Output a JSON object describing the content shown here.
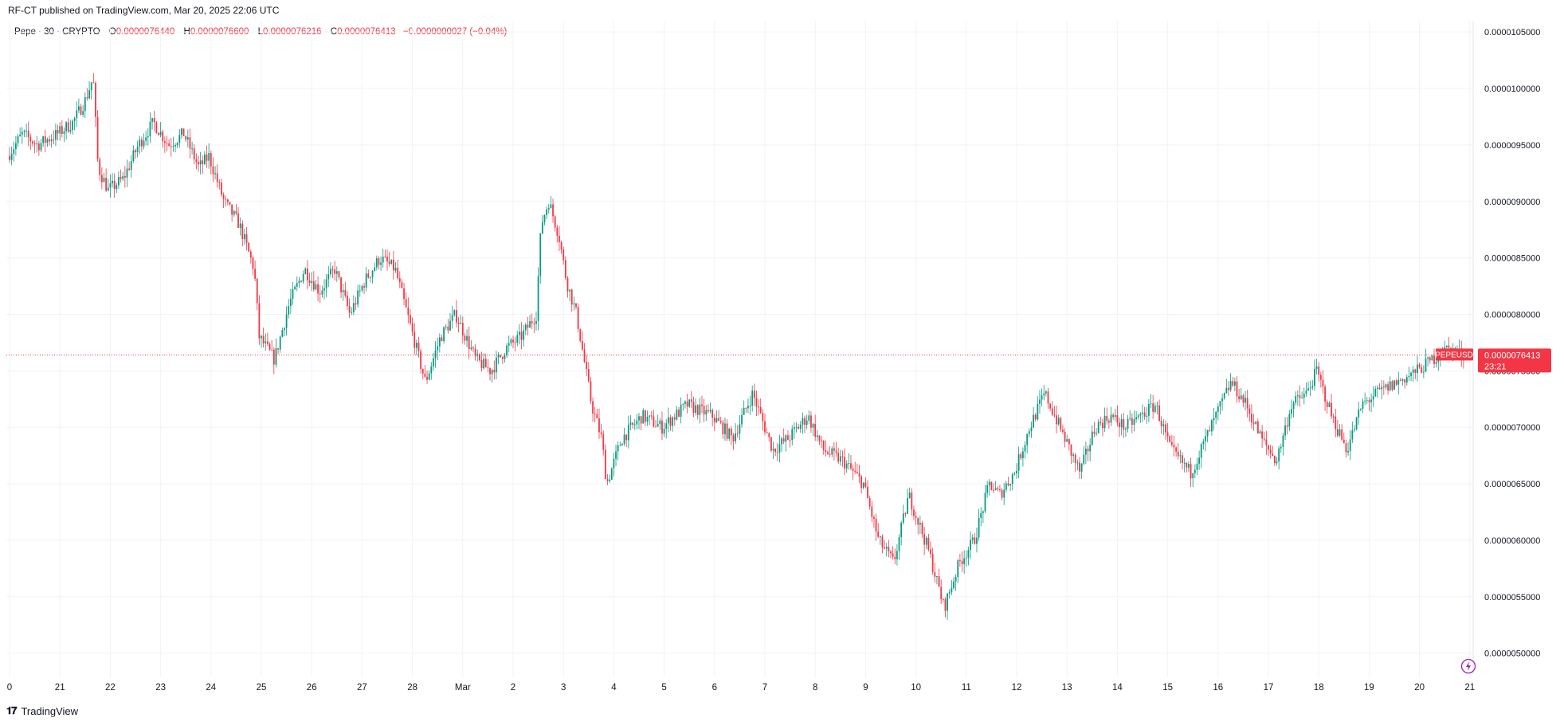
{
  "header": {
    "publisher_line": "RF-CT published on TradingView.com, Mar 20, 2025 22:06 UTC"
  },
  "legend": {
    "symbol": "Pepe · 30 · CRYPTO",
    "o_label": "O",
    "o_value": "0.0000076440",
    "h_label": "H",
    "h_value": "0.0000076600",
    "l_label": "L",
    "l_value": "0.0000076216",
    "c_label": "C",
    "c_value": "0.0000076413",
    "change": "−0.0000000027 (−0.04%)"
  },
  "price_tag": {
    "ticker": "PEPEUSD",
    "price": "0.0000076413",
    "countdown": "23:21"
  },
  "footer": {
    "brand": "TradingView"
  },
  "colors": {
    "up": "#089981",
    "down": "#f23645",
    "grid": "#f0f3fa",
    "axis_text": "#131722",
    "alert_icon": "#9c27b0"
  },
  "chart_data": {
    "type": "candlestick",
    "ylim": [
      4.8e-06,
      1.06e-05
    ],
    "y_ticks": [
      "0.0000050000",
      "0.0000055000",
      "0.0000060000",
      "0.0000065000",
      "0.0000070000",
      "0.0000075000",
      "0.0000080000",
      "0.0000085000",
      "0.0000090000",
      "0.0000095000",
      "0.0000100000",
      "0.0000105000"
    ],
    "y_tick_values": [
      5e-06,
      5.5e-06,
      6e-06,
      6.5e-06,
      7e-06,
      7.5e-06,
      8e-06,
      8.5e-06,
      9e-06,
      9.5e-06,
      1e-05,
      1.05e-05
    ],
    "x_ticks": [
      "0",
      "21",
      "22",
      "23",
      "24",
      "25",
      "26",
      "27",
      "28",
      "Mar",
      "2",
      "3",
      "4",
      "5",
      "6",
      "7",
      "8",
      "9",
      "10",
      "11",
      "12",
      "13",
      "14",
      "15",
      "16",
      "17",
      "18",
      "19",
      "20",
      "21"
    ],
    "x_tick_days": [
      0,
      1,
      2,
      3,
      4,
      5,
      6,
      7,
      8,
      9,
      10,
      11,
      12,
      13,
      14,
      15,
      16,
      17,
      18,
      19,
      20,
      21,
      22,
      23,
      24,
      25,
      26,
      27,
      28,
      29
    ],
    "last_price": 7.6413e-06,
    "price_path_days": [
      0.0,
      0.3,
      0.6,
      1.0,
      1.3,
      1.55,
      1.7,
      1.8,
      2.0,
      2.3,
      2.6,
      2.9,
      3.2,
      3.5,
      3.8,
      4.0,
      4.3,
      4.6,
      4.9,
      5.0,
      5.3,
      5.6,
      5.9,
      6.2,
      6.5,
      6.8,
      7.1,
      7.4,
      7.7,
      8.0,
      8.3,
      8.6,
      8.9,
      9.3,
      9.6,
      9.9,
      10.2,
      10.5,
      10.6,
      10.75,
      10.95,
      11.1,
      11.3,
      11.6,
      11.8,
      11.9,
      12.2,
      12.6,
      13.0,
      13.5,
      14.0,
      14.4,
      14.8,
      15.2,
      15.5,
      15.9,
      16.2,
      16.6,
      17.0,
      17.3,
      17.6,
      17.9,
      18.3,
      18.6,
      18.9,
      19.2,
      19.5,
      19.7,
      20.0,
      20.3,
      20.6,
      21.0,
      21.3,
      21.6,
      21.9,
      22.2,
      22.5,
      22.8,
      23.1,
      23.5,
      23.9,
      24.3,
      24.6,
      24.9,
      25.2,
      25.5,
      25.8,
      26.0,
      26.3,
      26.6,
      26.9,
      27.2,
      27.6,
      28.0,
      28.3,
      28.6,
      28.9
    ],
    "price_path_values": [
      9.4,
      9.6,
      9.5,
      9.6,
      9.7,
      9.9,
      10.1,
      9.3,
      9.1,
      9.2,
      9.5,
      9.7,
      9.5,
      9.6,
      9.3,
      9.4,
      9.0,
      8.8,
      8.4,
      7.8,
      7.6,
      8.1,
      8.4,
      8.2,
      8.4,
      8.0,
      8.3,
      8.5,
      8.4,
      7.9,
      7.4,
      7.8,
      8.0,
      7.6,
      7.5,
      7.7,
      7.8,
      8.0,
      8.8,
      9.0,
      8.7,
      8.3,
      8.0,
      7.2,
      6.9,
      6.5,
      6.9,
      7.1,
      7.0,
      7.2,
      7.1,
      6.9,
      7.3,
      6.8,
      6.9,
      7.1,
      6.8,
      6.7,
      6.5,
      6.0,
      5.8,
      6.4,
      5.9,
      5.4,
      5.8,
      6.0,
      6.5,
      6.4,
      6.6,
      7.0,
      7.3,
      6.9,
      6.6,
      7.0,
      7.1,
      7.0,
      7.1,
      7.2,
      6.8,
      6.6,
      7.0,
      7.4,
      7.2,
      6.9,
      6.7,
      7.2,
      7.3,
      7.5,
      7.1,
      6.8,
      7.2,
      7.3,
      7.4,
      7.5,
      7.6,
      7.7,
      7.64
    ],
    "price_path_unit": "0.000001"
  }
}
